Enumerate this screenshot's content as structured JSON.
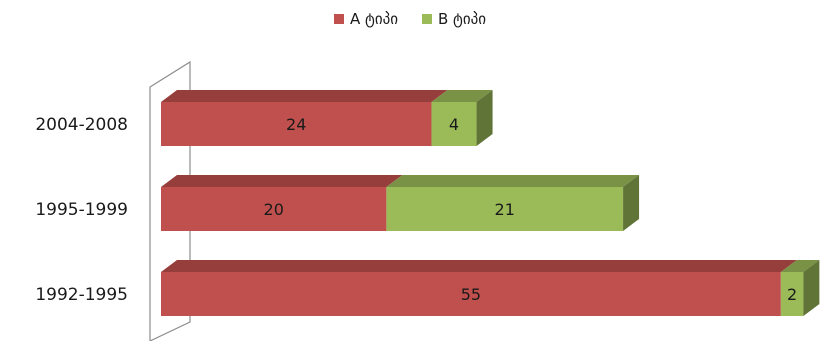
{
  "chart_data": {
    "type": "bar",
    "orientation": "horizontal",
    "stacked": true,
    "three_d": true,
    "categories": [
      "2004-2008",
      "1995-1999",
      "1992-1995"
    ],
    "series": [
      {
        "name": "A ტიპი",
        "color": "#C0504D",
        "values": [
          24,
          20,
          55
        ]
      },
      {
        "name": "B ტიპი",
        "color": "#9BBB59",
        "values": [
          4,
          21,
          2
        ]
      }
    ],
    "xlim": [
      0,
      57
    ],
    "legend_position": "top",
    "grid": false,
    "title": "",
    "xlabel": "",
    "ylabel": ""
  }
}
